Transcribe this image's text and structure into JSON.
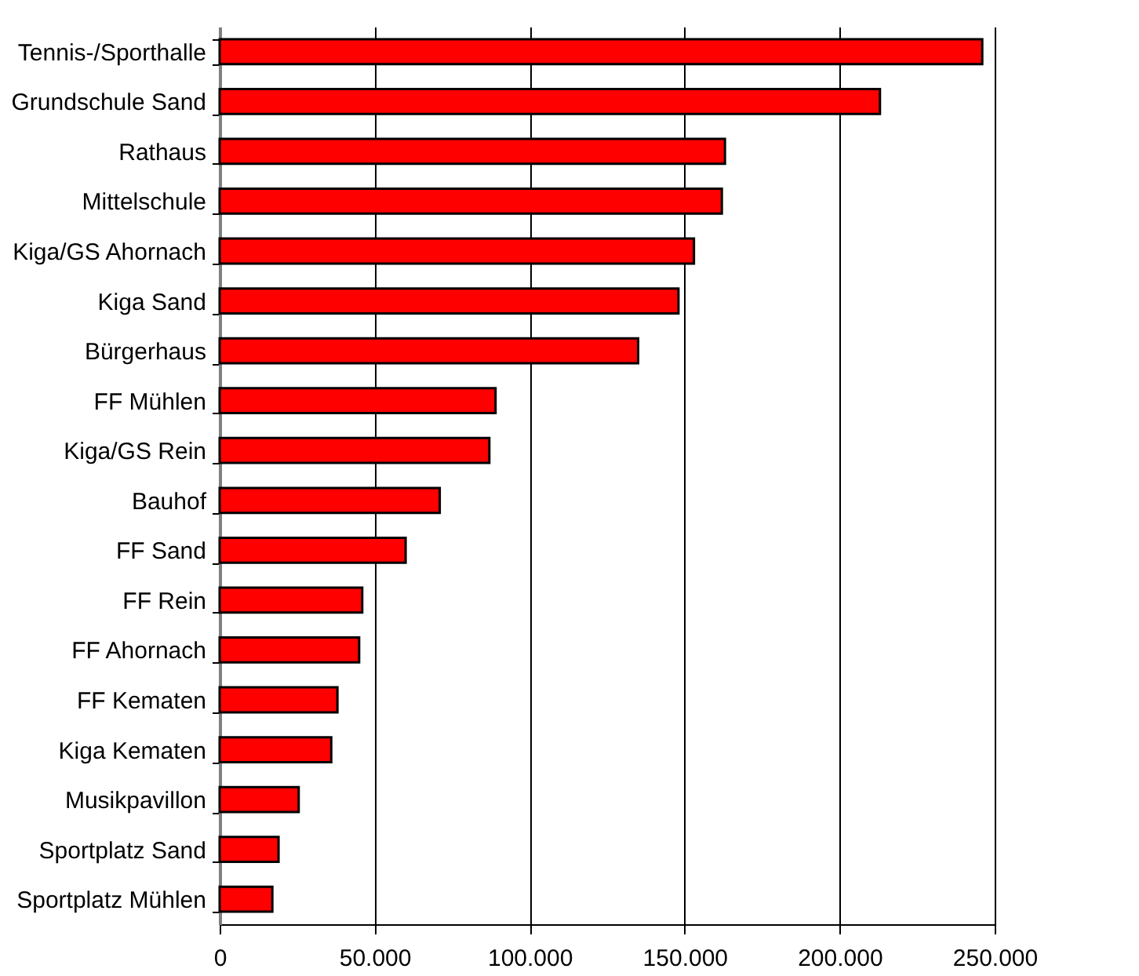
{
  "chart_data": {
    "type": "bar",
    "orientation": "horizontal",
    "categories": [
      "Tennis-/Sporthalle",
      "Grundschule Sand",
      "Rathaus",
      "Mittelschule",
      "Kiga/GS Ahornach",
      "Kiga Sand",
      "Bürgerhaus",
      "FF Mühlen",
      "Kiga/GS Rein",
      "Bauhof",
      "FF Sand",
      "FF Rein",
      "FF Ahornach",
      "FF Kematen",
      "Kiga Kematen",
      "Musikpavillon",
      "Sportplatz Sand",
      "Sportplatz Mühlen"
    ],
    "values": [
      246000,
      213000,
      163000,
      162000,
      153000,
      148000,
      135000,
      89000,
      87000,
      71000,
      60000,
      46000,
      45000,
      38000,
      36000,
      25500,
      19000,
      17000
    ],
    "color": "#ff0000",
    "xlim": [
      0,
      250000
    ],
    "xticks": [
      {
        "value": 0,
        "label": "0"
      },
      {
        "value": 50000,
        "label": "50.000"
      },
      {
        "value": 100000,
        "label": "100.000"
      },
      {
        "value": 150000,
        "label": "150.000"
      },
      {
        "value": 200000,
        "label": "200.000"
      },
      {
        "value": 250000,
        "label": "250.000"
      }
    ],
    "grid": "x"
  }
}
